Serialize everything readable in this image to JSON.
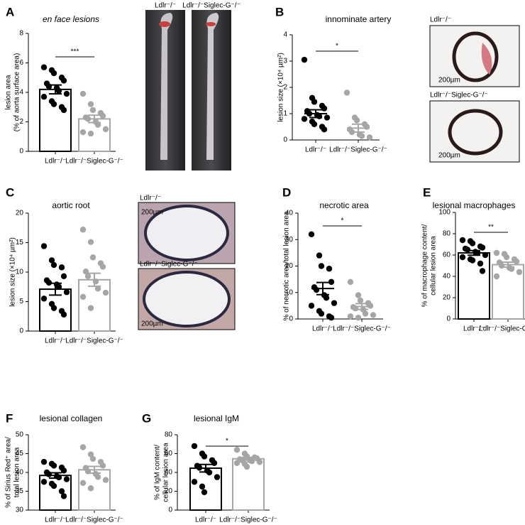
{
  "chart_data": [
    {
      "type": "bar",
      "panel": "A",
      "title": "en face lesions",
      "ylabel": [
        "lesion area",
        "(% of aorta surface area)"
      ],
      "categories": [
        "Ldlr⁻/⁻",
        "Ldlr⁻/⁻Siglec-G⁻/⁻"
      ],
      "colors": [
        "#000000",
        "#a6a6a6"
      ],
      "bars": true,
      "means": [
        4.2,
        2.2
      ],
      "sem": [
        0.3,
        0.25
      ],
      "points": [
        [
          5.7,
          5.5,
          5.3,
          5.0,
          4.8,
          4.6,
          4.4,
          4.3,
          4.1,
          3.9,
          3.7,
          3.4,
          3.2,
          3.0,
          2.8
        ],
        [
          3.9,
          3.2,
          2.8,
          2.6,
          2.4,
          2.3,
          2.2,
          2.0,
          1.8,
          1.5,
          1.3,
          1.2
        ]
      ],
      "ylim": [
        0,
        8
      ],
      "yticks": [
        0,
        2,
        4,
        6,
        8
      ],
      "significance": "***",
      "image_labels": [
        "Ldlr⁻/⁻",
        "Ldlr⁻/⁻Siglec-G⁻/⁻"
      ]
    },
    {
      "type": "scatter",
      "panel": "B",
      "title": "innominate artery",
      "ylabel": [
        "lesion size (×10⁴ µm²)"
      ],
      "categories": [
        "Ldlr⁻/⁻",
        "Ldlr⁻/⁻Siglec-G⁻/⁻"
      ],
      "colors": [
        "#000000",
        "#a6a6a6"
      ],
      "bars": false,
      "means": [
        1.0,
        0.45
      ],
      "sem": [
        0.15,
        0.15
      ],
      "points": [
        [
          3.05,
          1.6,
          1.45,
          1.3,
          1.2,
          1.1,
          1.0,
          0.95,
          0.9,
          0.85,
          0.8,
          0.7,
          0.6,
          0.5,
          0.4
        ],
        [
          1.8,
          0.85,
          0.75,
          0.6,
          0.5,
          0.4,
          0.3,
          0.2,
          0.15,
          0.1
        ]
      ],
      "ylim": [
        0,
        4
      ],
      "yticks": [
        0,
        1,
        2,
        3,
        4
      ],
      "significance": "*",
      "image_labels": [
        "Ldlr⁻/⁻",
        "Ldlr⁻/⁻Siglec-G⁻/⁻"
      ],
      "scale_bar": "200µm"
    },
    {
      "type": "bar",
      "panel": "C",
      "title": "aortic root",
      "ylabel": [
        "lesion size (×10⁴ µm²)"
      ],
      "categories": [
        "Ldlr⁻/⁻",
        "Ldlr⁻/⁻Siglec-G⁻/⁻"
      ],
      "colors": [
        "#000000",
        "#a6a6a6"
      ],
      "bars": true,
      "means": [
        7.1,
        8.7
      ],
      "sem": [
        1.0,
        1.1
      ],
      "points": [
        [
          14.4,
          12.0,
          11.2,
          10.8,
          9.3,
          8.6,
          8.2,
          7.9,
          7.5,
          6.6,
          5.5,
          4.6,
          3.9,
          3.4,
          2.8
        ],
        [
          17.2,
          15.1,
          12.5,
          11.5,
          10.9,
          10.1,
          9.3,
          8.4,
          7.2,
          6.5,
          5.8,
          3.9
        ]
      ],
      "ylim": [
        0,
        20
      ],
      "yticks": [
        0,
        5,
        10,
        15,
        20
      ],
      "image_labels": [
        "Ldlr⁻/⁻",
        "Ldlr⁻/⁻Siglec-G⁻/⁻"
      ],
      "scale_bar": "200µm"
    },
    {
      "type": "scatter",
      "panel": "D",
      "title": "necrotic area",
      "ylabel": [
        "% of necrotic area/total lesion area"
      ],
      "categories": [
        "Ldlr⁻/⁻",
        "Ldlr⁻/⁻Siglec-G⁻/⁻"
      ],
      "colors": [
        "#000000",
        "#a6a6a6"
      ],
      "bars": false,
      "means": [
        11.5,
        4.7
      ],
      "sem": [
        2.3,
        1.1
      ],
      "points": [
        [
          32,
          24,
          20,
          19,
          14,
          12,
          11,
          9,
          8,
          6,
          5,
          3,
          2,
          1,
          0.5
        ],
        [
          14,
          9,
          7,
          6,
          5,
          4.5,
          4,
          3.5,
          2,
          1.5,
          1,
          0.5
        ]
      ],
      "ylim": [
        0,
        40
      ],
      "yticks": [
        0,
        10,
        20,
        30,
        40
      ],
      "significance": "*"
    },
    {
      "type": "bar",
      "panel": "E",
      "title": "lesional macrophages",
      "ylabel": [
        "% of macrophage content/",
        "cellular lesion area"
      ],
      "categories": [
        "Ldlr⁻/⁻",
        "Ldlr⁻/⁻Siglec-G⁻/⁻"
      ],
      "colors": [
        "#000000",
        "#a6a6a6"
      ],
      "bars": true,
      "means": [
        62,
        51
      ],
      "sem": [
        2.2,
        2.3
      ],
      "points": [
        [
          74,
          73,
          71,
          68,
          67,
          66,
          65,
          63,
          62,
          60,
          58,
          56,
          55,
          52,
          45
        ],
        [
          62,
          61,
          58,
          56,
          54,
          53,
          50,
          48,
          47,
          44,
          40
        ]
      ],
      "ylim": [
        0,
        100
      ],
      "yticks": [
        0,
        20,
        40,
        60,
        80,
        100
      ],
      "significance": "**"
    },
    {
      "type": "bar",
      "panel": "F",
      "title": "lesional collagen",
      "ylabel": [
        "% of Sirius Red⁺ area/",
        "total lesion area"
      ],
      "categories": [
        "Ldlr⁻/⁻",
        "Ldlr⁻/⁻Siglec-G⁻/⁻"
      ],
      "colors": [
        "#000000",
        "#a6a6a6"
      ],
      "bars": true,
      "means": [
        39.2,
        40.7
      ],
      "sem": [
        0.7,
        0.9
      ],
      "points": [
        [
          42.8,
          42.3,
          41.8,
          41.3,
          40.5,
          40.0,
          39.5,
          39.0,
          38.7,
          38.2,
          37.5,
          37.0,
          36.4,
          35.0,
          33.7
        ],
        [
          46.7,
          44.8,
          43.6,
          42.8,
          41.8,
          41.2,
          40.3,
          39.6,
          38.8,
          38.0,
          37.2,
          35.8
        ]
      ],
      "ylim": [
        30,
        50
      ],
      "yticks": [
        30,
        35,
        40,
        45,
        50
      ]
    },
    {
      "type": "bar",
      "panel": "G",
      "title": "lesional IgM",
      "ylabel": [
        "% of IgM content/",
        "cellular lesion area"
      ],
      "categories": [
        "Ldlr⁻/⁻",
        "Ldlr⁻/⁻Siglec-G⁻/⁻"
      ],
      "colors": [
        "#000000",
        "#a6a6a6"
      ],
      "bars": true,
      "means": [
        44.5,
        54.5
      ],
      "sem": [
        4.0,
        1.5
      ],
      "points": [
        [
          68,
          60,
          57,
          53,
          50,
          47,
          45,
          42,
          40,
          35,
          30,
          25,
          19
        ],
        [
          64,
          60,
          57,
          56,
          55,
          54,
          53,
          53,
          52,
          51,
          50,
          49,
          46
        ]
      ],
      "ylim": [
        0,
        80
      ],
      "yticks": [
        0,
        20,
        40,
        60,
        80
      ],
      "significance": "*"
    }
  ]
}
